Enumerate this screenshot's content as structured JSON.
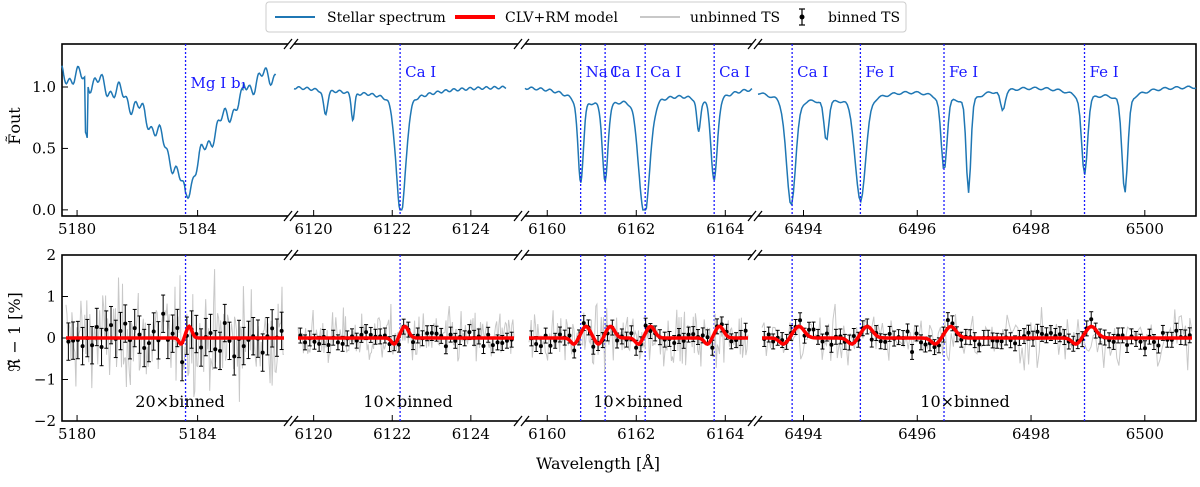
{
  "chart_data": [
    {
      "type": "line",
      "panel": "top",
      "ylabel": "F̃out",
      "ylim": [
        -0.05,
        1.35
      ],
      "yticks": [
        "0.0",
        "0.5",
        "1.0"
      ],
      "segments": [
        {
          "xlim": [
            5179.5,
            5187.0
          ],
          "xticks": [
            "5180",
            "5184"
          ]
        },
        {
          "xlim": [
            6119.5,
            6125.2
          ],
          "xticks": [
            "6120",
            "6122",
            "6124"
          ]
        },
        {
          "xlim": [
            6159.5,
            6164.6
          ],
          "xticks": [
            "6160",
            "6162",
            "6164"
          ]
        },
        {
          "xlim": [
            6493.2,
            6500.9
          ],
          "xticks": [
            "6494",
            "6496",
            "6498",
            "6500"
          ]
        }
      ],
      "series": [
        {
          "name": "Stellar spectrum",
          "color": "#1f77b4"
        }
      ],
      "spectral_lines": [
        {
          "segment": 0,
          "wavelength": 5183.6,
          "label": "Mg I b₁"
        },
        {
          "segment": 1,
          "wavelength": 6122.2,
          "label": "Ca I"
        },
        {
          "segment": 2,
          "wavelength": 6160.75,
          "label": "Na I"
        },
        {
          "segment": 2,
          "wavelength": 6161.3,
          "label": "Ca I"
        },
        {
          "segment": 2,
          "wavelength": 6162.2,
          "label": "Ca I"
        },
        {
          "segment": 2,
          "wavelength": 6163.75,
          "label": "Ca I"
        },
        {
          "segment": 3,
          "wavelength": 6493.8,
          "label": "Ca I"
        },
        {
          "segment": 3,
          "wavelength": 6495.0,
          "label": "Fe I"
        },
        {
          "segment": 3,
          "wavelength": 6496.47,
          "label": "Fe I"
        },
        {
          "segment": 3,
          "wavelength": 6498.94,
          "label": "Fe I"
        }
      ]
    },
    {
      "type": "scatter",
      "panel": "bottom",
      "xlabel": "Wavelength [Å]",
      "ylabel": "ℜ̃ − 1 [%]",
      "ylim": [
        -2,
        2
      ],
      "yticks": [
        "−2",
        "−1",
        "0",
        "1",
        "2"
      ],
      "series": [
        {
          "name": "CLV+RM model",
          "color": "#ff0000"
        },
        {
          "name": "unbinned TS",
          "color": "#c8c8c8"
        },
        {
          "name": "binned TS",
          "color": "#000000"
        }
      ],
      "bin_labels": [
        "20×binned",
        "10×binned",
        "10×binned",
        "10×binned"
      ]
    }
  ],
  "legend": {
    "placement": "top-center",
    "entries": [
      "Stellar spectrum",
      "CLV+RM model",
      "unbinned TS",
      "binned TS"
    ]
  }
}
